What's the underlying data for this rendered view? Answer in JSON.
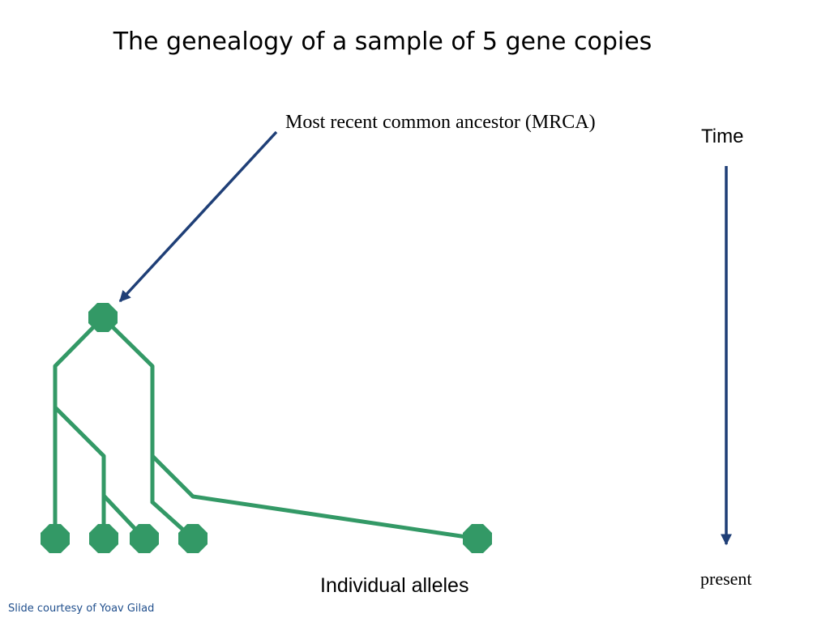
{
  "title": "The genealogy of a sample of 5 gene copies",
  "mrca_label": "Most recent common ancestor (MRCA)",
  "time_label": "Time",
  "present_label": "present",
  "alleles_label": "Individual alleles",
  "credit": "Slide courtesy of Yoav Gilad",
  "colors": {
    "tree": "#339966",
    "arrow": "#1f3f77",
    "credit": "#1f4e8c"
  }
}
